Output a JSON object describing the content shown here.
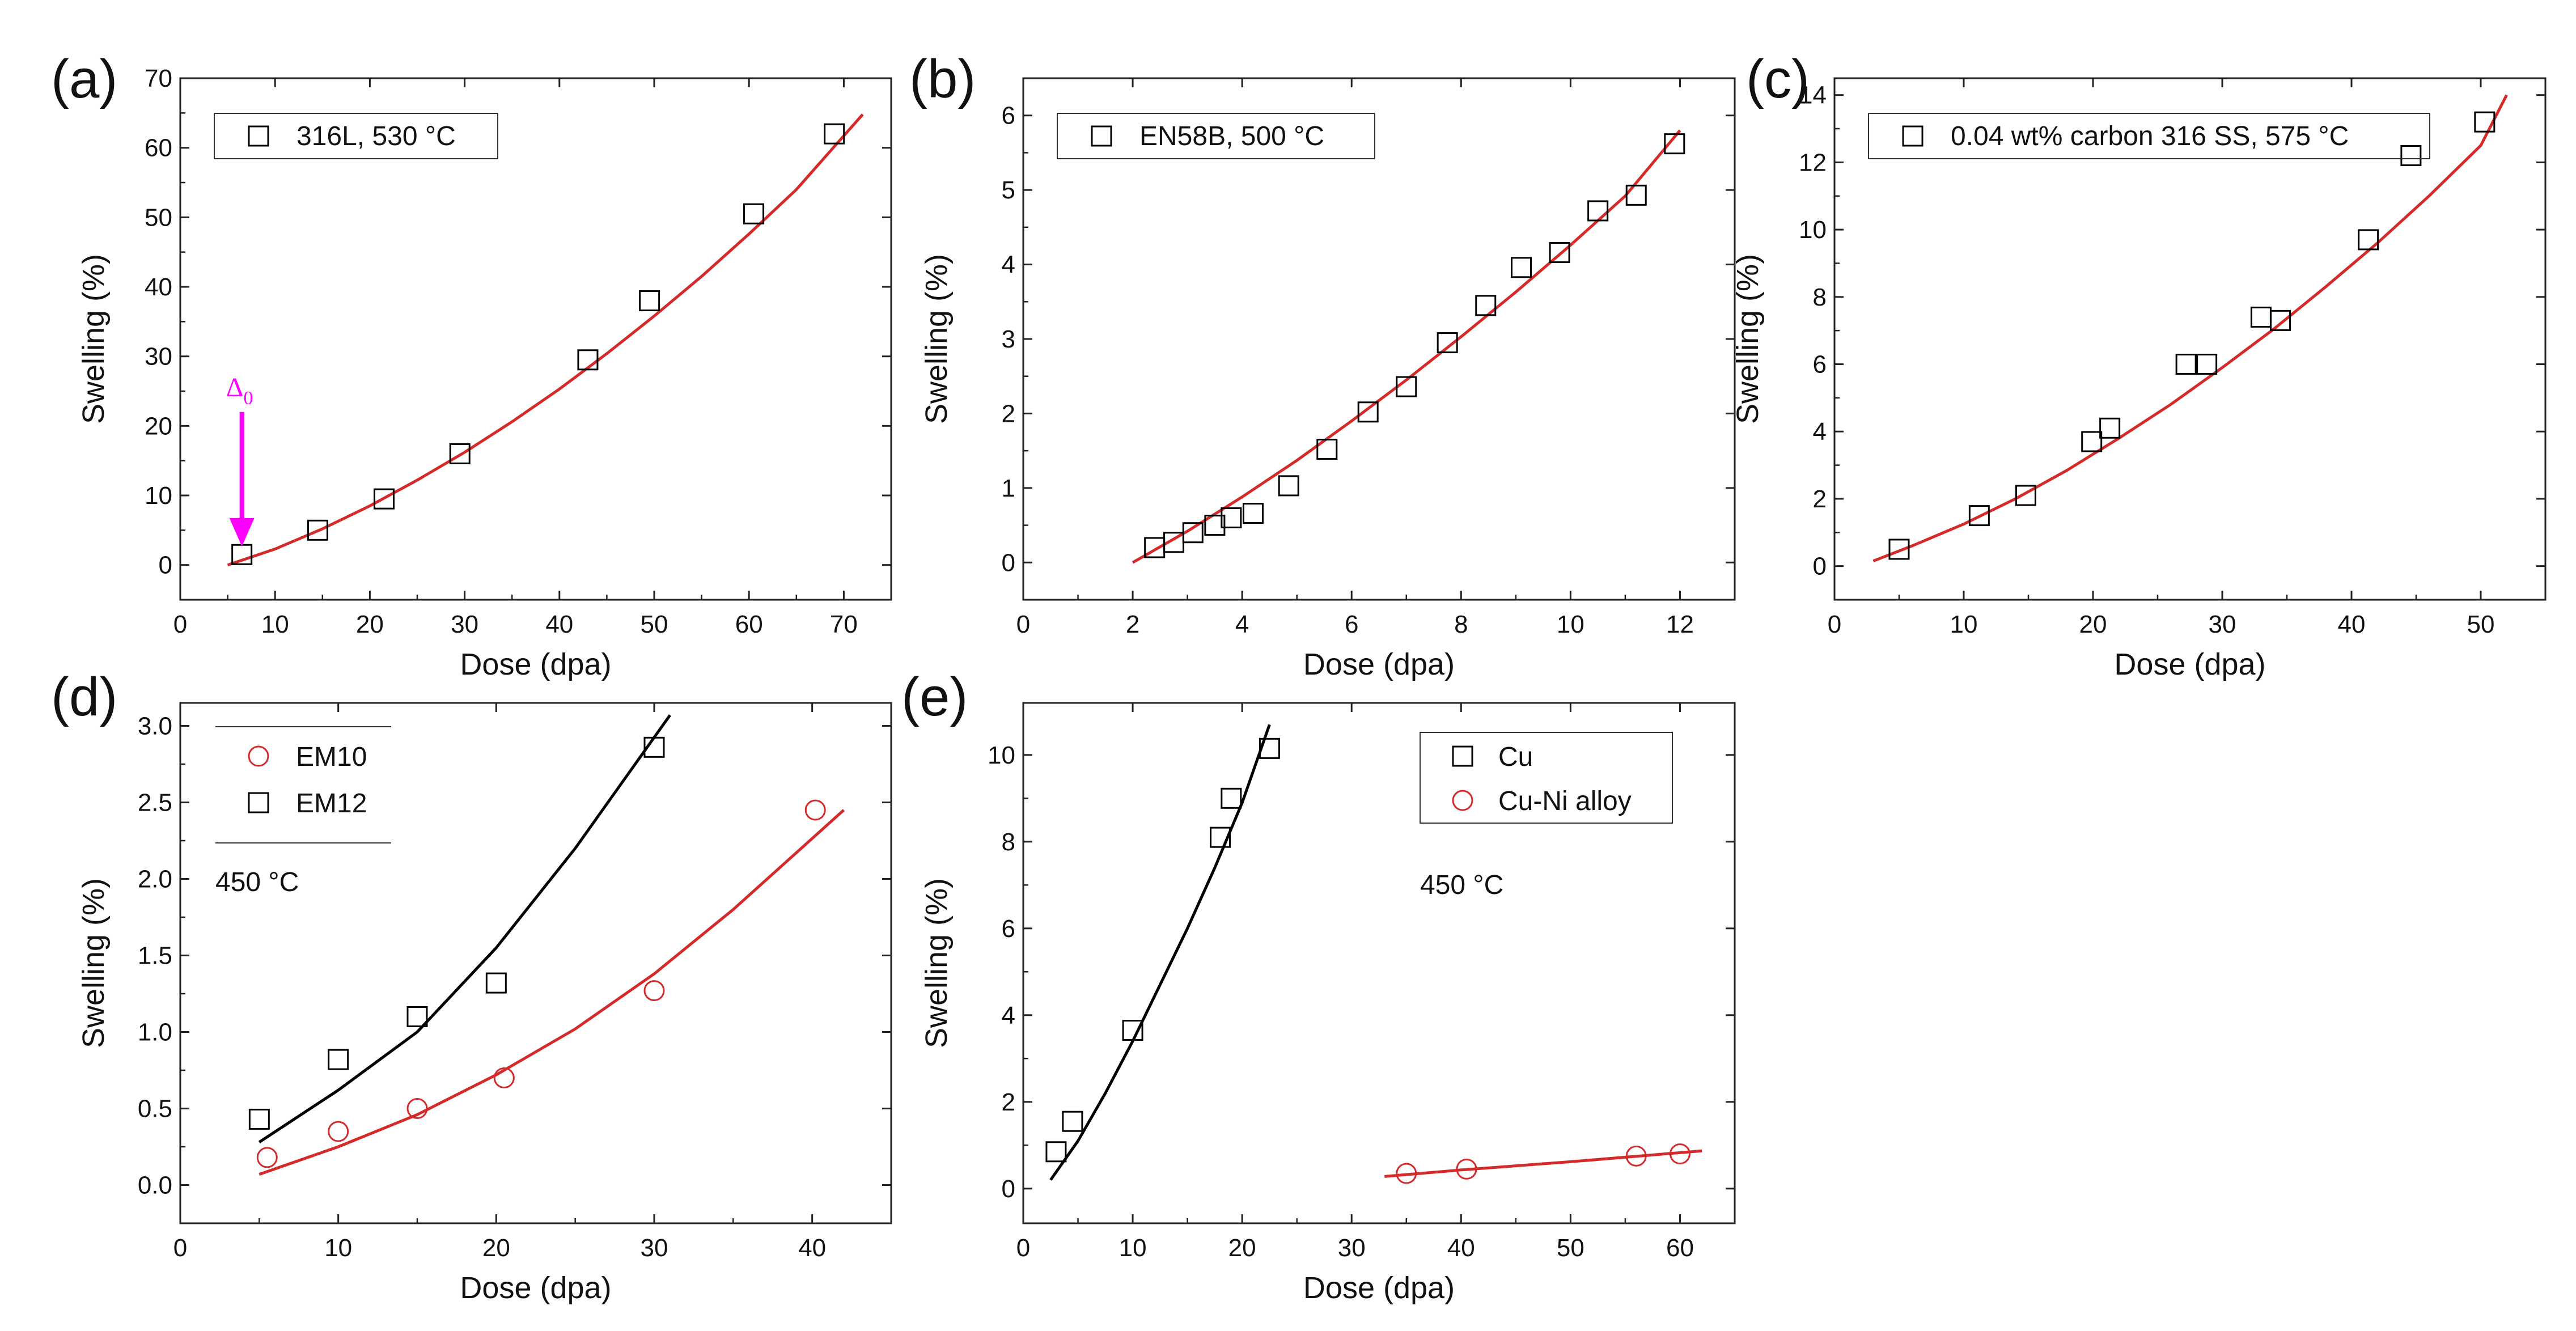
{
  "colors": {
    "black": "#000000",
    "red": "#d42a2a",
    "magenta": "#ff00ff",
    "axis": "#222222"
  },
  "chart_data": [
    {
      "id": "a",
      "panel_label": "(a)",
      "type": "scatter",
      "xlabel": "Dose (dpa)",
      "ylabel": "Swelling (%)",
      "xlim": [
        0,
        75
      ],
      "ylim": [
        -5,
        70
      ],
      "xticks": [
        0,
        10,
        20,
        30,
        40,
        50,
        60,
        70
      ],
      "yticks": [
        0,
        10,
        20,
        30,
        40,
        50,
        60,
        70
      ],
      "legend_position": "top-left",
      "series": [
        {
          "name": "316L, 530 °C",
          "marker": "square",
          "color": "#000000",
          "x": [
            6.5,
            14.5,
            21.5,
            29.5,
            43,
            49.5,
            60.5,
            69
          ],
          "y": [
            1.5,
            5,
            9.5,
            16,
            29.5,
            38,
            50.5,
            62
          ]
        }
      ],
      "fits": [
        {
          "color": "#d42a2a",
          "x": [
            5,
            10,
            15,
            20,
            25,
            30,
            35,
            40,
            45,
            50,
            55,
            60,
            65,
            72
          ],
          "y": [
            0,
            2.3,
            5.2,
            8.5,
            12.2,
            16.2,
            20.6,
            25.3,
            30.4,
            35.8,
            41.5,
            47.6,
            54,
            64.8
          ]
        }
      ],
      "annotations": [
        {
          "type": "arrow",
          "label": "Δ",
          "subscript": "0",
          "color": "#ff00ff",
          "x": 6.5,
          "y_from": 22,
          "y_to": 3
        }
      ]
    },
    {
      "id": "b",
      "panel_label": "(b)",
      "type": "scatter",
      "xlabel": "Dose (dpa)",
      "ylabel": "Swelling (%)",
      "xlim": [
        0,
        13
      ],
      "ylim": [
        -0.5,
        6.5
      ],
      "xticks": [
        0,
        2,
        4,
        6,
        8,
        10,
        12
      ],
      "yticks": [
        0,
        1,
        2,
        3,
        4,
        5,
        6
      ],
      "legend_position": "top-left",
      "series": [
        {
          "name": "EN58B, 500 °C",
          "marker": "square",
          "color": "#000000",
          "x": [
            2.4,
            2.75,
            3.1,
            3.5,
            3.8,
            4.2,
            4.85,
            5.55,
            6.3,
            7.0,
            7.75,
            8.45,
            9.1,
            9.8,
            10.5,
            11.2,
            11.9
          ],
          "y": [
            0.2,
            0.27,
            0.4,
            0.5,
            0.6,
            0.66,
            1.03,
            1.52,
            2.02,
            2.36,
            2.95,
            3.45,
            3.96,
            4.16,
            4.72,
            4.93,
            5.62
          ]
        }
      ],
      "fits": [
        {
          "color": "#d42a2a",
          "x": [
            2,
            3,
            4,
            5,
            6,
            7,
            8,
            9,
            10,
            11,
            12
          ],
          "y": [
            0,
            0.42,
            0.88,
            1.37,
            1.9,
            2.45,
            3.03,
            3.63,
            4.26,
            4.92,
            5.8
          ]
        }
      ]
    },
    {
      "id": "c",
      "panel_label": "(c)",
      "type": "scatter",
      "xlabel": "Dose (dpa)",
      "ylabel": "Swelling (%)",
      "xlim": [
        0,
        55
      ],
      "ylim": [
        -1,
        14.5
      ],
      "xticks": [
        0,
        10,
        20,
        30,
        40,
        50
      ],
      "yticks": [
        0,
        2,
        4,
        6,
        8,
        10,
        12,
        14
      ],
      "legend_position": "top-left",
      "series": [
        {
          "name": "0.04 wt% carbon 316 SS, 575 °C",
          "marker": "square",
          "color": "#000000",
          "x": [
            5,
            11.2,
            14.8,
            19.9,
            21.3,
            27.2,
            28.8,
            33,
            34.5,
            41.3,
            44.6,
            50.3
          ],
          "y": [
            0.5,
            1.5,
            2.1,
            3.7,
            4.1,
            6,
            6,
            7.4,
            7.3,
            9.7,
            12.2,
            13.2
          ]
        }
      ],
      "fits": [
        {
          "color": "#d42a2a",
          "x": [
            3,
            6,
            10,
            14,
            18,
            22,
            26,
            30,
            34,
            38,
            42,
            46,
            50,
            52
          ],
          "y": [
            0.15,
            0.6,
            1.25,
            2.0,
            2.85,
            3.8,
            4.8,
            5.9,
            7.05,
            8.3,
            9.6,
            11.0,
            12.5,
            14.0
          ]
        }
      ]
    },
    {
      "id": "d",
      "panel_label": "(d)",
      "type": "scatter",
      "xlabel": "Dose (dpa)",
      "ylabel": "Swelling (%)",
      "xlim": [
        0,
        45
      ],
      "ylim": [
        -0.25,
        3.15
      ],
      "xticks": [
        0,
        10,
        20,
        30,
        40
      ],
      "yticks": [
        0.0,
        0.5,
        1.0,
        1.5,
        2.0,
        2.5,
        3.0
      ],
      "ytick_labels": [
        "0.0",
        "0.5",
        "1.0",
        "1.5",
        "2.0",
        "2.5",
        "3.0"
      ],
      "legend_position": "top-left",
      "annotation_text": "450 °C",
      "series": [
        {
          "name": "EM10",
          "marker": "circle",
          "color": "#d42a2a",
          "x": [
            5.5,
            10,
            15,
            20.5,
            30,
            40.2
          ],
          "y": [
            0.18,
            0.35,
            0.5,
            0.7,
            1.27,
            2.45
          ]
        },
        {
          "name": "EM12",
          "marker": "square",
          "color": "#000000",
          "x": [
            5,
            10,
            15,
            20,
            30
          ],
          "y": [
            0.43,
            0.82,
            1.1,
            1.32,
            2.86
          ]
        }
      ],
      "fits": [
        {
          "color": "#d42a2a",
          "x": [
            5,
            10,
            15,
            20,
            25,
            30,
            35,
            42
          ],
          "y": [
            0.07,
            0.25,
            0.46,
            0.72,
            1.02,
            1.38,
            1.8,
            2.45
          ]
        },
        {
          "color": "#000000",
          "x": [
            5,
            10,
            15,
            20,
            25,
            31
          ],
          "y": [
            0.28,
            0.62,
            1.0,
            1.55,
            2.2,
            3.07
          ]
        }
      ]
    },
    {
      "id": "e",
      "panel_label": "(e)",
      "type": "scatter",
      "xlabel": "Dose (dpa)",
      "ylabel": "Swelling (%)",
      "xlim": [
        0,
        65
      ],
      "ylim": [
        -0.8,
        11.2
      ],
      "xticks": [
        0,
        10,
        20,
        30,
        40,
        50,
        60
      ],
      "yticks": [
        0,
        2,
        4,
        6,
        8,
        10
      ],
      "legend_position": "top-right",
      "annotation_text": "450 °C",
      "series": [
        {
          "name": "Cu",
          "marker": "square",
          "color": "#000000",
          "x": [
            3,
            4.5,
            10,
            18,
            19,
            22.5
          ],
          "y": [
            0.85,
            1.55,
            3.65,
            8.1,
            9.0,
            10.15
          ]
        },
        {
          "name": "Cu-Ni alloy",
          "marker": "circle",
          "color": "#d42a2a",
          "x": [
            35,
            40.5,
            56,
            60
          ],
          "y": [
            0.35,
            0.45,
            0.75,
            0.8
          ]
        }
      ],
      "fits": [
        {
          "color": "#000000",
          "x": [
            2.5,
            5,
            7.5,
            10,
            12.5,
            15,
            17.5,
            20,
            22.5
          ],
          "y": [
            0.2,
            1.1,
            2.2,
            3.4,
            4.7,
            6.0,
            7.4,
            8.9,
            10.7
          ]
        },
        {
          "color": "#d42a2a",
          "x": [
            33,
            40,
            50,
            62
          ],
          "y": [
            0.28,
            0.43,
            0.62,
            0.87
          ]
        }
      ]
    }
  ]
}
